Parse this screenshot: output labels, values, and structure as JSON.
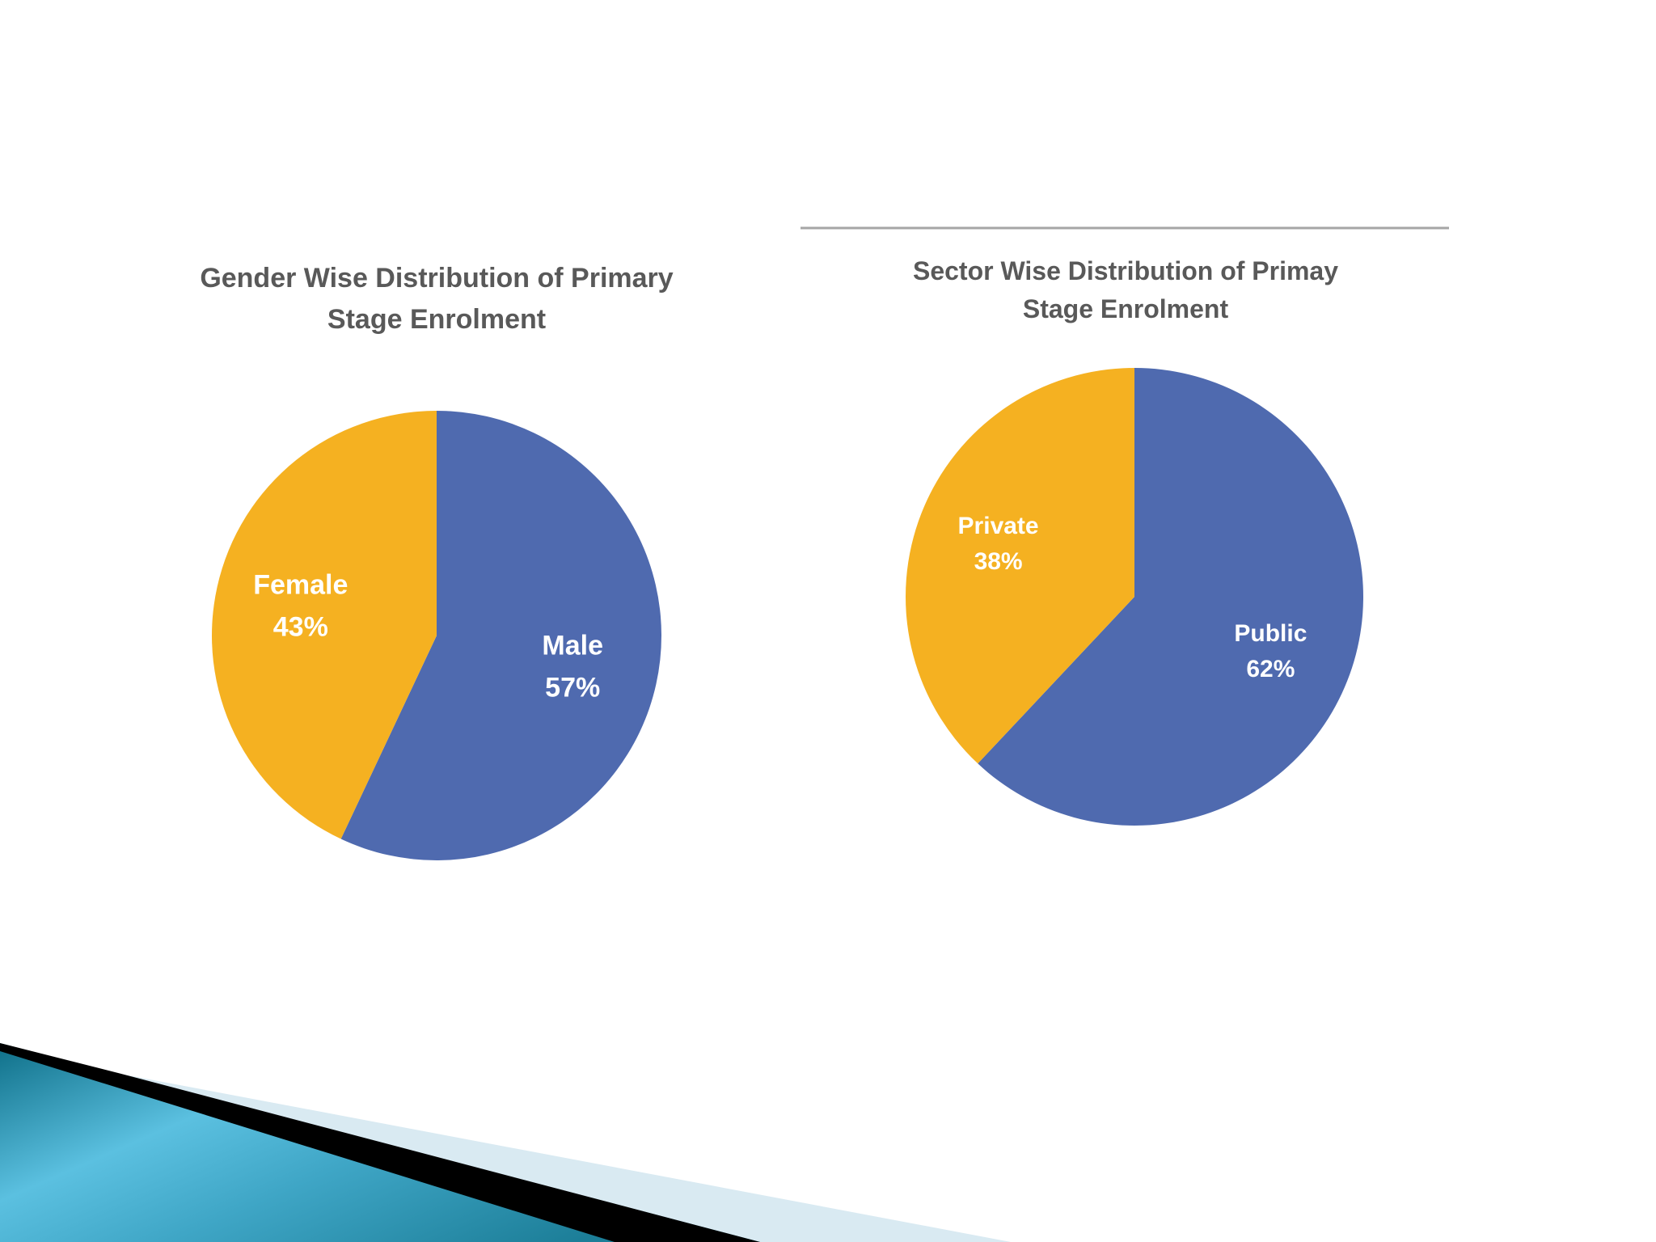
{
  "chart_data": [
    {
      "type": "pie",
      "title_lines": [
        "Gender Wise Distribution of Primary",
        "Stage Enrolment"
      ],
      "categories": [
        "Male",
        "Female"
      ],
      "values": [
        57,
        43
      ],
      "value_labels": [
        "57%",
        "43%"
      ],
      "colors": [
        "#4F6AAF",
        "#F5B121"
      ],
      "legend": "none",
      "start_angle_deg": 0,
      "direction": "clockwise"
    },
    {
      "type": "pie",
      "title_lines": [
        "Sector Wise Distribution of Primay",
        "Stage Enrolment"
      ],
      "categories": [
        "Public",
        "Private"
      ],
      "values": [
        62,
        38
      ],
      "value_labels": [
        "62%",
        "38%"
      ],
      "colors": [
        "#4F6AAF",
        "#F5B121"
      ],
      "legend": "none",
      "start_angle_deg": 0,
      "direction": "clockwise"
    }
  ],
  "decor": {
    "accent_dark": "#0E6F88",
    "accent_light": "#5BC0E0",
    "accent_pale": "#D9EAF2",
    "wedge_black": "#000000"
  }
}
